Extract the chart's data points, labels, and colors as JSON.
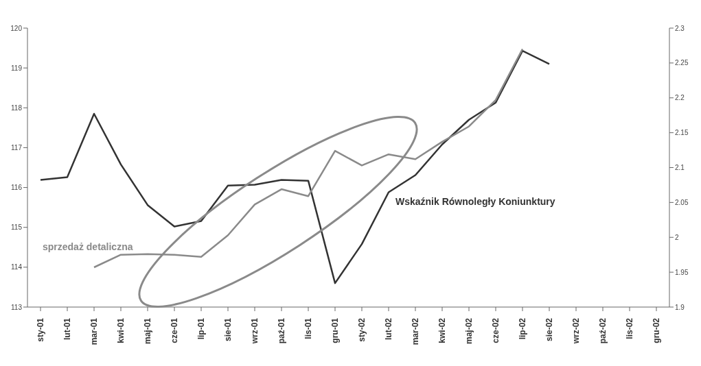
{
  "chart_data": {
    "type": "line",
    "categories": [
      "sty-01",
      "lut-01",
      "mar-01",
      "kwi-01",
      "maj-01",
      "cze-01",
      "lip-01",
      "sie-01",
      "wrz-01",
      "paź-01",
      "lis-01",
      "gru-01",
      "sty-02",
      "lut-02",
      "mar-02",
      "kwi-02",
      "maj-02",
      "cze-02",
      "lip-02",
      "sie-02",
      "wrz-02",
      "paź-02",
      "lis-02",
      "gru-02"
    ],
    "series": [
      {
        "name": "Wskaźnik Równoległy Koniunktury",
        "color": "#333333",
        "values": [
          116.19,
          116.26,
          117.85,
          116.58,
          115.56,
          115.02,
          115.16,
          116.05,
          116.07,
          116.19,
          116.17,
          113.6,
          114.58,
          115.88,
          116.31,
          117.08,
          117.7,
          118.13,
          119.43,
          119.1,
          null,
          null,
          null,
          null
        ]
      },
      {
        "name": "sprzedaż detaliczna",
        "color": "#8a8a8a",
        "axis": "y2",
        "values": [
          null,
          null,
          1.957,
          1.975,
          1.976,
          1.975,
          1.972,
          2.003,
          2.047,
          2.069,
          2.059,
          2.124,
          2.103,
          2.119,
          2.112,
          2.137,
          2.159,
          2.197,
          2.27,
          null,
          null,
          null,
          null,
          null
        ]
      }
    ],
    "ylim": [
      113,
      120
    ],
    "yticks": [
      113,
      114,
      115,
      116,
      117,
      118,
      119,
      120
    ],
    "y2lim": [
      1.9,
      2.3
    ],
    "y2ticks": [
      1.9,
      1.95,
      2,
      2.05,
      2.1,
      2.15,
      2.2,
      2.25,
      2.3
    ],
    "grid": false,
    "legend": false,
    "marker": "none",
    "line_style": "solid"
  }
}
